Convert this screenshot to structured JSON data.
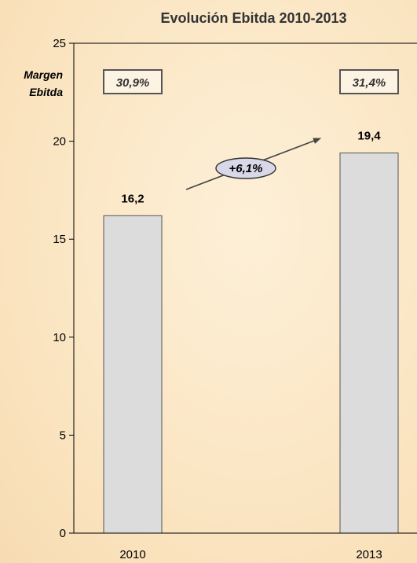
{
  "chart_data": {
    "type": "bar",
    "title": "Evolución Ebitda 2010-2013",
    "categories": [
      "2010",
      "2013"
    ],
    "values": [
      16.2,
      19.4
    ],
    "value_labels": [
      "16,2",
      "19,4"
    ],
    "ylim": [
      0,
      25
    ],
    "yticks": [
      "0",
      "5",
      "10",
      "15",
      "20",
      "25"
    ],
    "xlabel": "",
    "ylabel": "",
    "grid": false,
    "margin_label": [
      "Margen",
      "Ebitda"
    ],
    "margins": [
      "30,9%",
      "31,4%"
    ],
    "growth_label": "+6,1%",
    "colors": {
      "bar_fill": "#dcdcdc",
      "bar_stroke": "#555555",
      "axis": "#000000",
      "box_stroke": "#555555",
      "box_fill": "#fdf3e3",
      "ellipse_fill": "#d8d8e8"
    }
  }
}
